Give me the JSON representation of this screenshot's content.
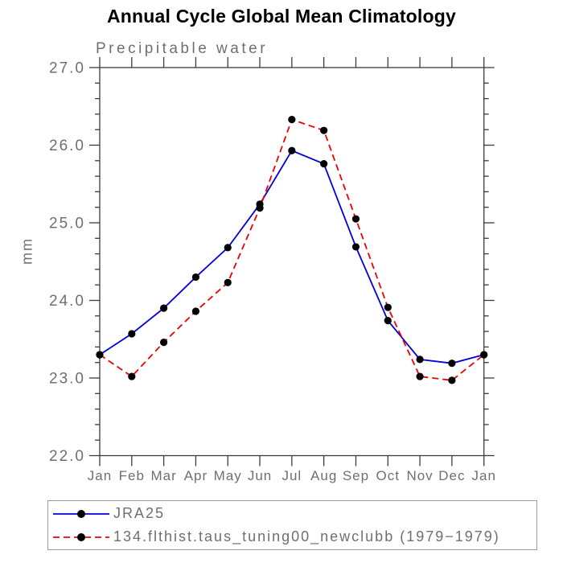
{
  "chart_data": {
    "type": "line",
    "title": "Annual Cycle Global Mean Climatology",
    "subtitle": "Precipitable water",
    "xlabel": "",
    "ylabel": "mm",
    "ylim": [
      22.0,
      27.0
    ],
    "y_major_step": 1.0,
    "y_minor_step": 0.2,
    "grid": false,
    "legend_position": "bottom-left",
    "y_ticks": [
      {
        "v": 27.0,
        "label": "27.0"
      },
      {
        "v": 26.0,
        "label": "26.0"
      },
      {
        "v": 25.0,
        "label": "25.0"
      },
      {
        "v": 24.0,
        "label": "24.0"
      },
      {
        "v": 23.0,
        "label": "23.0"
      },
      {
        "v": 22.0,
        "label": "22.0"
      }
    ],
    "x_labels": [
      "Jan",
      "Feb",
      "Mar",
      "Apr",
      "May",
      "Jun",
      "Jul",
      "Aug",
      "Sep",
      "Oct",
      "Nov",
      "Dec",
      "Jan"
    ],
    "series": [
      {
        "name": "JRA25",
        "color": "#0000dd",
        "line_style": "solid",
        "marker": "filled-circle",
        "marker_color": "#000000",
        "values": [
          23.3,
          23.57,
          23.9,
          24.3,
          24.68,
          25.24,
          25.93,
          25.76,
          24.69,
          23.74,
          23.24,
          23.19,
          23.3
        ]
      },
      {
        "name": "134.flthist.taus_tuning00_newclubb (1979−1979)",
        "color": "#ee0000",
        "line_style": "dashed",
        "marker": "filled-circle",
        "marker_color": "#000000",
        "values": [
          23.3,
          23.02,
          23.46,
          23.86,
          24.23,
          25.19,
          26.33,
          26.19,
          25.05,
          23.91,
          23.02,
          22.97,
          23.3
        ]
      }
    ],
    "axis_color": "#3c3c3c",
    "tick_label_color": "#6f6f6f"
  }
}
